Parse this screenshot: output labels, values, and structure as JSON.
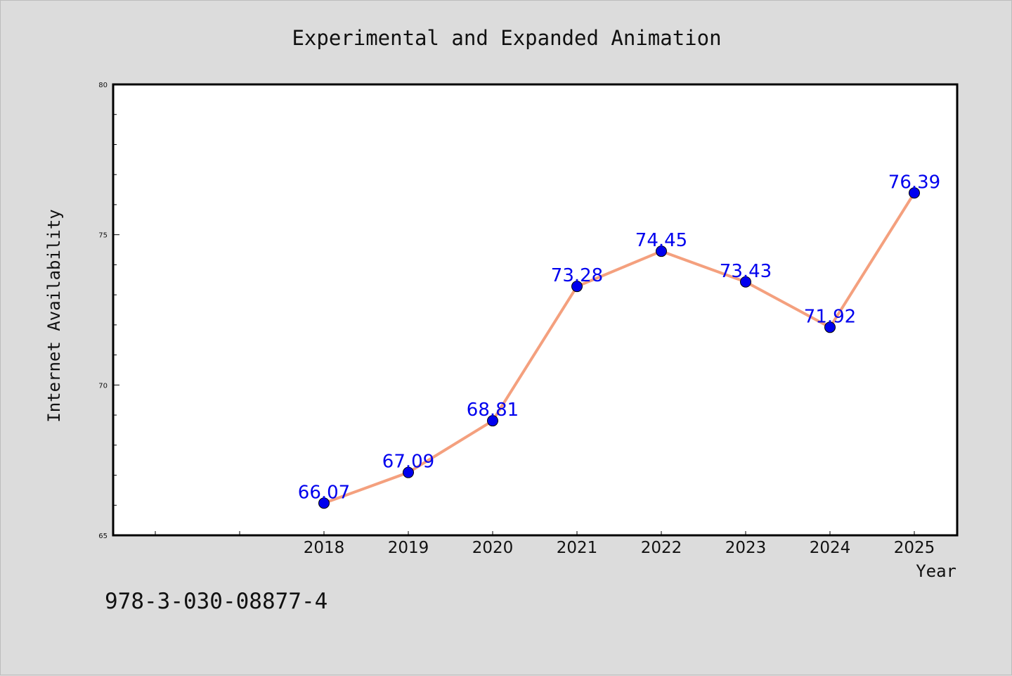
{
  "chart_data": {
    "type": "line",
    "title": "Experimental and Expanded Animation",
    "xlabel": "Year",
    "ylabel": "Internet Availability",
    "categories": [
      "2018",
      "2019",
      "2020",
      "2021",
      "2022",
      "2023",
      "2024",
      "2025"
    ],
    "series": [
      {
        "values": [
          66.07,
          67.09,
          68.81,
          73.28,
          74.45,
          73.43,
          71.92,
          76.39
        ],
        "line_color": "#f4a07e",
        "marker_color": "#0000ee"
      }
    ],
    "data_labels": [
      "66.07",
      "67.09",
      "68.81",
      "73.28",
      "74.45",
      "73.43",
      "71.92",
      "76.39"
    ],
    "ylim": [
      65,
      80
    ],
    "yticks": [
      "65",
      "70",
      "75",
      "80"
    ],
    "grid": false,
    "legend": "none"
  },
  "footer": {
    "isbn": "978-3-030-08877-4"
  },
  "colors": {
    "background": "#dcdcdc",
    "plot_background": "#ffffff"
  }
}
